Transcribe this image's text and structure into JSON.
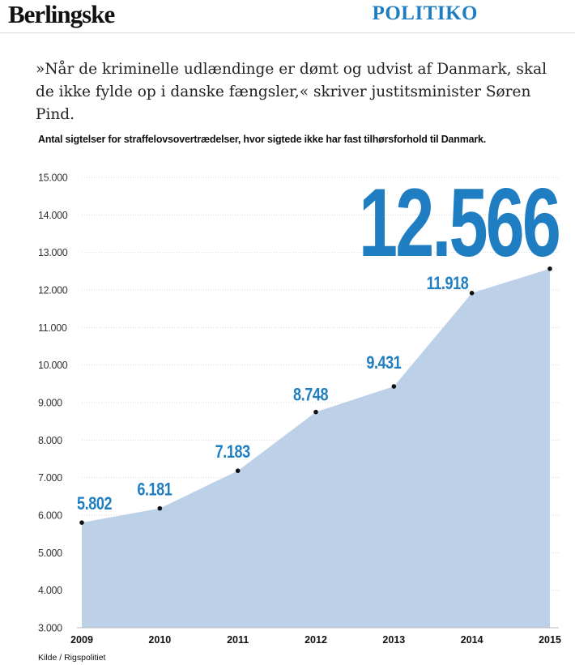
{
  "header": {
    "brand": "Berlingske",
    "section": "POLITIKO"
  },
  "quote": "»Når de kriminelle udlændinge er dømt og udvist af Danmark, skal de ikke fylde op i danske fængsler,« skriver justitsminister Søren Pind.",
  "source": "Kilde / Rigspolitiet",
  "colors": {
    "accent": "#1f7ec1",
    "area": "#bcd1e8"
  },
  "chart_data": {
    "type": "area",
    "title": "Antal sigtelser for straffelovsovertrædelser, hvor sigtede ikke har fast tilhørsforhold til Danmark.",
    "x": [
      "2009",
      "2010",
      "2011",
      "2012",
      "2013",
      "2014",
      "2015"
    ],
    "values": [
      5802,
      6181,
      7183,
      8748,
      9431,
      11918,
      12566
    ],
    "data_labels": [
      "5.802",
      "6.181",
      "7.183",
      "8.748",
      "9.431",
      "11.918",
      "12.566"
    ],
    "highlight_label": "12.566",
    "ylim": [
      3000,
      15000
    ],
    "y_ticks": [
      3000,
      4000,
      5000,
      6000,
      7000,
      8000,
      9000,
      10000,
      11000,
      12000,
      13000,
      14000,
      15000
    ],
    "y_tick_labels": [
      "3.000",
      "4.000",
      "5.000",
      "6.000",
      "7.000",
      "8.000",
      "9.000",
      "10.000",
      "11.000",
      "12.000",
      "13.000",
      "14.000",
      "15.000"
    ],
    "grid": true,
    "xlabel": "",
    "ylabel": ""
  }
}
